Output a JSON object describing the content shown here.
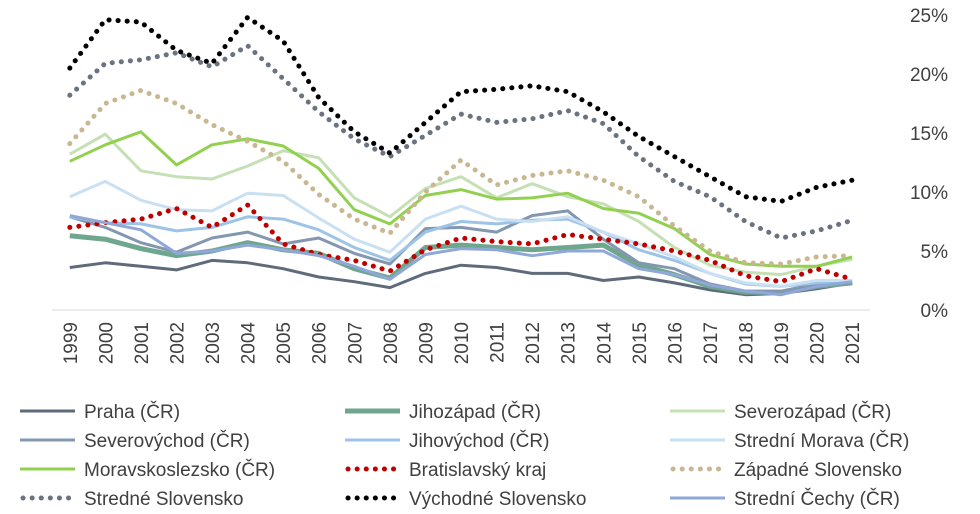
{
  "chart_data": {
    "type": "line",
    "title": "",
    "xlabel": "",
    "ylabel": "",
    "ylim": [
      0,
      25
    ],
    "y_tick_labels": [
      "0%",
      "5%",
      "10%",
      "15%",
      "20%",
      "25%"
    ],
    "y_ticks": [
      0,
      5,
      10,
      15,
      20,
      25
    ],
    "categories": [
      "1999",
      "2000",
      "2001",
      "2002",
      "2003",
      "2004",
      "2005",
      "2006",
      "2007",
      "2008",
      "2009",
      "2010",
      "2011",
      "2012",
      "2013",
      "2014",
      "2015",
      "2016",
      "2017",
      "2018",
      "2019",
      "2020",
      "2021"
    ],
    "legend_position": "bottom",
    "series": [
      {
        "name": "Praha (ČR)",
        "color": "#5f6b7a",
        "style": "solid",
        "width": 3,
        "values": [
          3.6,
          4.0,
          3.7,
          3.4,
          4.2,
          4.0,
          3.5,
          2.8,
          2.4,
          1.9,
          3.1,
          3.8,
          3.6,
          3.1,
          3.1,
          2.5,
          2.8,
          2.3,
          1.7,
          1.3,
          1.4,
          1.8,
          2.3
        ]
      },
      {
        "name": "Jihozápad (ČR)",
        "color": "#6fa68e",
        "style": "solid",
        "width": 5,
        "values": [
          6.3,
          6.0,
          5.2,
          4.6,
          5.0,
          5.7,
          5.1,
          4.8,
          3.5,
          2.7,
          5.3,
          5.5,
          5.3,
          5.1,
          5.3,
          5.5,
          3.8,
          3.0,
          2.0,
          1.5,
          1.5,
          2.0,
          2.3
        ]
      },
      {
        "name": "Severozápad (ČR)",
        "color": "#c5e0b4",
        "style": "solid",
        "width": 3,
        "values": [
          13.2,
          14.9,
          11.8,
          11.3,
          11.1,
          12.2,
          13.5,
          12.9,
          9.5,
          7.9,
          10.3,
          11.3,
          9.5,
          10.7,
          9.6,
          9.0,
          7.5,
          5.3,
          3.8,
          3.2,
          3.0,
          3.7,
          4.3
        ]
      },
      {
        "name": "Severovýchod (ČR)",
        "color": "#8497b0",
        "style": "solid",
        "width": 3,
        "values": [
          7.9,
          7.0,
          5.7,
          4.9,
          6.1,
          6.6,
          5.6,
          6.1,
          4.8,
          3.9,
          6.9,
          7.0,
          6.6,
          8.0,
          8.4,
          6.0,
          4.0,
          3.5,
          2.2,
          1.6,
          1.6,
          2.2,
          2.3
        ]
      },
      {
        "name": "Jihovýchod (ČR)",
        "color": "#9dc3e6",
        "style": "solid",
        "width": 3,
        "values": [
          7.9,
          7.4,
          7.3,
          6.7,
          7.0,
          7.9,
          7.7,
          6.8,
          5.3,
          4.2,
          6.6,
          7.5,
          7.3,
          7.6,
          7.7,
          6.6,
          5.1,
          4.2,
          3.1,
          2.2,
          2.0,
          2.3,
          2.5
        ]
      },
      {
        "name": "Strední Morava (ČR)",
        "color": "#c9dff2",
        "style": "solid",
        "width": 3,
        "values": [
          9.6,
          10.9,
          9.3,
          8.5,
          8.4,
          9.9,
          9.7,
          7.8,
          6.0,
          4.9,
          7.7,
          8.8,
          7.7,
          7.5,
          7.9,
          6.6,
          5.6,
          4.5,
          3.1,
          2.3,
          2.0,
          2.5,
          2.5
        ]
      },
      {
        "name": "Moravskoslezsko (ČR)",
        "color": "#92d050",
        "style": "solid",
        "width": 3,
        "values": [
          12.6,
          14.0,
          15.1,
          12.3,
          14.0,
          14.5,
          13.9,
          12.0,
          8.5,
          7.3,
          9.7,
          10.2,
          9.4,
          9.5,
          9.9,
          8.6,
          8.2,
          6.9,
          4.7,
          3.9,
          3.7,
          3.7,
          4.5
        ]
      },
      {
        "name": "Bratislavský kraj",
        "color": "#c00000",
        "style": "dotted",
        "width": 5,
        "values": [
          7.0,
          7.4,
          7.7,
          8.6,
          7.0,
          8.9,
          5.6,
          4.7,
          4.2,
          3.3,
          5.1,
          6.1,
          5.8,
          5.6,
          6.4,
          6.0,
          5.6,
          5.0,
          4.2,
          2.9,
          2.4,
          3.5,
          2.6
        ]
      },
      {
        "name": "Západné Slovensko",
        "color": "#c9b792",
        "style": "dotted",
        "width": 5,
        "values": [
          14.1,
          17.5,
          18.6,
          17.5,
          15.7,
          14.3,
          12.6,
          9.8,
          7.7,
          6.5,
          10.0,
          12.7,
          10.6,
          11.4,
          11.8,
          11.0,
          9.6,
          7.1,
          5.0,
          4.0,
          3.9,
          4.5,
          4.6
        ]
      },
      {
        "name": "Stredné Slovensko",
        "color": "#6b7380",
        "style": "dotted",
        "width": 5,
        "values": [
          18.2,
          20.9,
          21.2,
          21.8,
          20.6,
          22.4,
          19.6,
          16.8,
          14.5,
          13.0,
          14.8,
          16.6,
          15.9,
          16.2,
          16.9,
          15.8,
          13.0,
          10.9,
          9.6,
          7.5,
          6.1,
          6.7,
          7.6
        ]
      },
      {
        "name": "Východné Slovensko",
        "color": "#000000",
        "style": "dotted",
        "width": 5,
        "values": [
          20.5,
          24.6,
          24.4,
          22.0,
          20.9,
          24.8,
          22.8,
          18.0,
          15.1,
          13.3,
          15.9,
          18.5,
          18.7,
          19.0,
          18.5,
          16.8,
          14.7,
          13.0,
          11.3,
          9.6,
          9.2,
          10.4,
          11.0
        ]
      },
      {
        "name": "Strední Čechy (ČR)",
        "color": "#8fa8d8",
        "style": "solid",
        "width": 3,
        "values": [
          8.0,
          7.4,
          6.8,
          4.8,
          5.0,
          5.5,
          5.1,
          4.6,
          3.7,
          2.6,
          4.7,
          5.2,
          5.1,
          4.6,
          5.0,
          5.0,
          3.5,
          3.0,
          2.1,
          1.6,
          1.3,
          2.0,
          2.4
        ]
      }
    ]
  }
}
